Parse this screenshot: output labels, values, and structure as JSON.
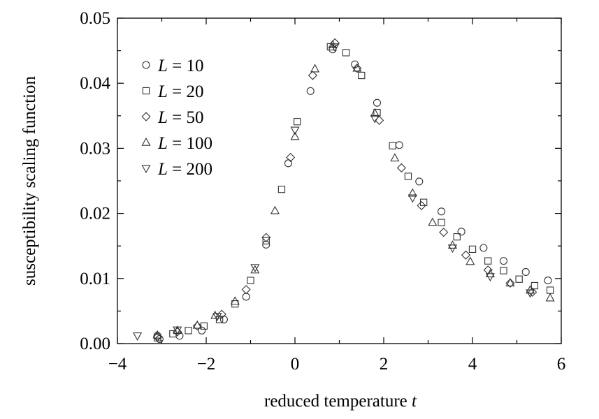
{
  "chart_data": {
    "type": "scatter",
    "xlabel": "reduced temperature",
    "xlabel_var": "t",
    "ylabel": "susceptibility scaling function",
    "xlim": [
      -4,
      6
    ],
    "ylim": [
      0.0,
      0.05
    ],
    "x_ticks": [
      -4,
      -2,
      0,
      2,
      4,
      6
    ],
    "x_tick_labels": [
      "−4",
      "−2",
      "0",
      "2",
      "4",
      "6"
    ],
    "y_ticks": [
      0.0,
      0.01,
      0.02,
      0.03,
      0.04,
      0.05
    ],
    "y_tick_labels": [
      "0.00",
      "0.01",
      "0.02",
      "0.03",
      "0.04",
      "0.05"
    ],
    "grid": false,
    "legend_position": "top-left",
    "series": [
      {
        "name": "L = 10",
        "legend_var": "L",
        "legend_value": "= 10",
        "marker": "circle",
        "points": [
          [
            -3.1,
            0.0012
          ],
          [
            -3.05,
            0.0007
          ],
          [
            -2.6,
            0.0012
          ],
          [
            -2.1,
            0.002
          ],
          [
            -1.6,
            0.0037
          ],
          [
            -1.1,
            0.0072
          ],
          [
            -0.65,
            0.0152
          ],
          [
            -0.15,
            0.0277
          ],
          [
            0.35,
            0.0388
          ],
          [
            0.85,
            0.0452
          ],
          [
            1.35,
            0.0429
          ],
          [
            1.85,
            0.037
          ],
          [
            2.35,
            0.0305
          ],
          [
            2.8,
            0.0249
          ],
          [
            3.3,
            0.0203
          ],
          [
            3.75,
            0.0172
          ],
          [
            4.25,
            0.0147
          ],
          [
            4.7,
            0.0127
          ],
          [
            5.2,
            0.011
          ],
          [
            5.7,
            0.0097
          ]
        ]
      },
      {
        "name": "L = 20",
        "legend_var": "L",
        "legend_value": "= 20",
        "marker": "square",
        "points": [
          [
            -3.1,
            0.0009
          ],
          [
            -2.75,
            0.0015
          ],
          [
            -2.4,
            0.002
          ],
          [
            -2.05,
            0.0027
          ],
          [
            -1.7,
            0.0037
          ],
          [
            -1.35,
            0.0061
          ],
          [
            -1.0,
            0.0097
          ],
          [
            -0.65,
            0.0158
          ],
          [
            -0.3,
            0.0237
          ],
          [
            0.05,
            0.0341
          ],
          [
            0.8,
            0.0456
          ],
          [
            1.15,
            0.0447
          ],
          [
            1.5,
            0.0412
          ],
          [
            1.85,
            0.0355
          ],
          [
            2.2,
            0.0304
          ],
          [
            2.55,
            0.0257
          ],
          [
            2.9,
            0.0217
          ],
          [
            3.3,
            0.0186
          ],
          [
            3.65,
            0.0164
          ],
          [
            4.0,
            0.0145
          ],
          [
            4.35,
            0.0127
          ],
          [
            4.7,
            0.0112
          ],
          [
            5.05,
            0.0099
          ],
          [
            5.4,
            0.0089
          ],
          [
            5.75,
            0.0082
          ]
        ]
      },
      {
        "name": "L = 50",
        "legend_var": "L",
        "legend_value": "= 50",
        "marker": "diamond",
        "points": [
          [
            -3.1,
            0.001
          ],
          [
            -2.65,
            0.0018
          ],
          [
            -2.2,
            0.0027
          ],
          [
            -1.65,
            0.0045
          ],
          [
            -1.1,
            0.0083
          ],
          [
            -0.65,
            0.0163
          ],
          [
            -0.1,
            0.0286
          ],
          [
            0.4,
            0.0412
          ],
          [
            0.9,
            0.0462
          ],
          [
            1.4,
            0.0423
          ],
          [
            1.9,
            0.0343
          ],
          [
            2.4,
            0.027
          ],
          [
            2.85,
            0.0212
          ],
          [
            3.35,
            0.0171
          ],
          [
            3.85,
            0.0136
          ],
          [
            4.35,
            0.0113
          ],
          [
            4.85,
            0.0093
          ],
          [
            5.35,
            0.0079
          ]
        ]
      },
      {
        "name": "L = 100",
        "legend_var": "L",
        "legend_value": "= 100",
        "marker": "triangle-up",
        "points": [
          [
            -3.1,
            0.0013
          ],
          [
            -2.65,
            0.002
          ],
          [
            -2.2,
            0.0028
          ],
          [
            -1.8,
            0.0043
          ],
          [
            -1.35,
            0.0065
          ],
          [
            -0.9,
            0.0113
          ],
          [
            -0.45,
            0.0204
          ],
          [
            0.0,
            0.0318
          ],
          [
            0.45,
            0.0422
          ],
          [
            0.85,
            0.0459
          ],
          [
            1.4,
            0.0423
          ],
          [
            1.8,
            0.0354
          ],
          [
            2.25,
            0.0285
          ],
          [
            2.65,
            0.0231
          ],
          [
            3.1,
            0.0186
          ],
          [
            3.55,
            0.0151
          ],
          [
            3.95,
            0.0126
          ],
          [
            4.4,
            0.0107
          ],
          [
            4.85,
            0.0093
          ],
          [
            5.3,
            0.0082
          ],
          [
            5.75,
            0.007
          ]
        ]
      },
      {
        "name": "L = 200",
        "legend_var": "L",
        "legend_value": "= 200",
        "marker": "triangle-down",
        "points": [
          [
            -3.55,
            0.0012
          ],
          [
            -2.65,
            0.0021
          ],
          [
            -1.75,
            0.0042
          ],
          [
            -0.9,
            0.0117
          ],
          [
            0.0,
            0.0328
          ],
          [
            0.9,
            0.0456
          ],
          [
            1.8,
            0.0346
          ],
          [
            2.65,
            0.0224
          ],
          [
            3.55,
            0.0147
          ],
          [
            4.4,
            0.0103
          ],
          [
            5.3,
            0.0078
          ]
        ]
      }
    ]
  }
}
